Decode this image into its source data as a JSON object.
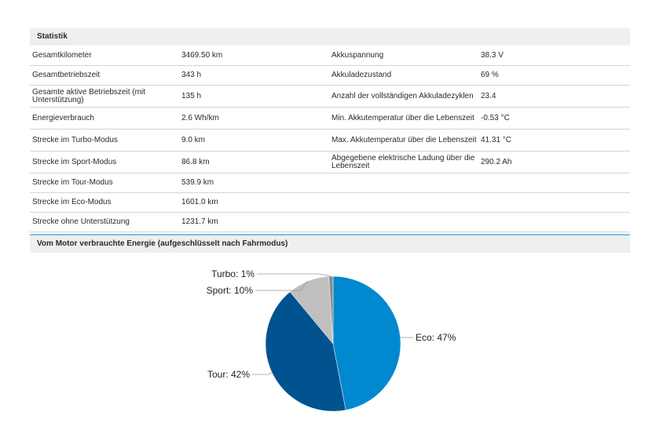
{
  "statistik": {
    "title": "Statistik",
    "rows": [
      {
        "label1": "Gesamtkilometer",
        "value1": "3469.50 km",
        "label2": "Akkuspannung",
        "value2": "38.3 V"
      },
      {
        "label1": "Gesamtbetriebszeit",
        "value1": "343 h",
        "label2": "Akkuladezustand",
        "value2": "69 %"
      },
      {
        "label1": "Gesamte aktive Betriebszeit (mit Unterstützung)",
        "value1": "135 h",
        "label2": "Anzahl der vollständigen Akkuladezyklen",
        "value2": "23.4"
      },
      {
        "label1": "Energieverbrauch",
        "value1": "2.6 Wh/km",
        "label2": "Min. Akkutemperatur über die Lebenszeit",
        "value2": "-0.53 °C"
      },
      {
        "label1": "Strecke im Turbo-Modus",
        "value1": "9.0 km",
        "label2": "Max. Akkutemperatur über die Lebenszeit",
        "value2": "41.31 °C"
      },
      {
        "label1": "Strecke im Sport-Modus",
        "value1": "86.8 km",
        "label2": "Abgegebene elektrische Ladung über die Lebenszeit",
        "value2": "290.2 Ah"
      },
      {
        "label1": "Strecke im Tour-Modus",
        "value1": "539.9 km",
        "label2": "",
        "value2": ""
      },
      {
        "label1": "Strecke im Eco-Modus",
        "value1": "1601.0 km",
        "label2": "",
        "value2": ""
      },
      {
        "label1": "Strecke ohne Unterstützung",
        "value1": "1231.7 km",
        "label2": "",
        "value2": ""
      }
    ]
  },
  "energy": {
    "title": "Vom Motor verbrauchte Energie (aufgeschlüsselt nach Fahrmodus)"
  },
  "chart_data": {
    "type": "pie",
    "slices": [
      {
        "name": "Eco",
        "value": 47,
        "label": "Eco: 47%",
        "color": "#0089cf"
      },
      {
        "name": "Tour",
        "value": 42,
        "label": "Tour: 42%",
        "color": "#00538f"
      },
      {
        "name": "Sport",
        "value": 10,
        "label": "Sport: 10%",
        "color": "#bfbfbf"
      },
      {
        "name": "Turbo",
        "value": 1,
        "label": "Turbo: 1%",
        "color": "#8c8c8c"
      }
    ]
  }
}
